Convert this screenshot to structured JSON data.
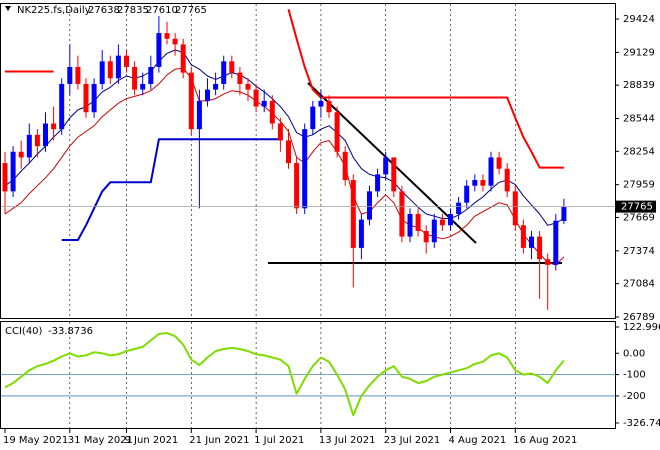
{
  "chart_data": {
    "type": "candlestick",
    "title": "NK225.fs,Daily",
    "categories": [
      "19 May 2021",
      null,
      null,
      null,
      null,
      null,
      null,
      null,
      "31 May 2021",
      null,
      null,
      null,
      null,
      null,
      null,
      "9 Jun 2021",
      null,
      null,
      null,
      null,
      null,
      null,
      null,
      "21 Jun 2021",
      null,
      null,
      null,
      null,
      null,
      null,
      null,
      "1 Jul 2021",
      null,
      null,
      null,
      null,
      null,
      null,
      null,
      "13 Jul 2021",
      null,
      null,
      null,
      null,
      null,
      null,
      null,
      "23 Jul 2021",
      null,
      null,
      null,
      null,
      null,
      null,
      null,
      "4 Aug 2021",
      null,
      null,
      null,
      null,
      null,
      null,
      null,
      "16 Aug 2021",
      null,
      null,
      null,
      null,
      null,
      null
    ],
    "ohlc": [
      [
        28150,
        28250,
        27700,
        27900
      ],
      [
        27900,
        28300,
        27850,
        28250
      ],
      [
        28250,
        28350,
        28100,
        28200
      ],
      [
        28200,
        28500,
        28150,
        28400
      ],
      [
        28400,
        28450,
        28200,
        28300
      ],
      [
        28300,
        28600,
        28250,
        28500
      ],
      [
        28500,
        28650,
        28350,
        28450
      ],
      [
        28450,
        28900,
        28400,
        28850
      ],
      [
        28850,
        29200,
        28750,
        29000
      ],
      [
        29000,
        29100,
        28800,
        28850
      ],
      [
        28850,
        28900,
        28550,
        28600
      ],
      [
        28600,
        28900,
        28550,
        28850
      ],
      [
        28850,
        29150,
        28800,
        29050
      ],
      [
        29050,
        29100,
        28850,
        28900
      ],
      [
        28900,
        29200,
        28850,
        29100
      ],
      [
        29100,
        29150,
        28950,
        29000
      ],
      [
        29000,
        29050,
        28750,
        28800
      ],
      [
        28800,
        28950,
        28750,
        28850
      ],
      [
        28850,
        29100,
        28800,
        29000
      ],
      [
        29000,
        29450,
        28950,
        29300
      ],
      [
        29300,
        29400,
        29200,
        29250
      ],
      [
        29250,
        29300,
        29100,
        29200
      ],
      [
        29200,
        29250,
        28900,
        28950
      ],
      [
        28950,
        29000,
        28400,
        28450
      ],
      [
        28450,
        28800,
        27750,
        28700
      ],
      [
        28700,
        28900,
        28650,
        28800
      ],
      [
        28800,
        28950,
        28750,
        28850
      ],
      [
        28850,
        29100,
        28800,
        29050
      ],
      [
        29050,
        29100,
        28900,
        28950
      ],
      [
        28950,
        29000,
        28750,
        28850
      ],
      [
        28850,
        28900,
        28700,
        28800
      ],
      [
        28800,
        28850,
        28600,
        28650
      ],
      [
        28650,
        28800,
        28600,
        28700
      ],
      [
        28700,
        28750,
        28450,
        28500
      ],
      [
        28500,
        28550,
        28250,
        28350
      ],
      [
        28350,
        28450,
        28100,
        28150
      ],
      [
        28150,
        28200,
        27700,
        27750
      ],
      [
        27750,
        28500,
        27700,
        28450
      ],
      [
        28450,
        28700,
        28400,
        28650
      ],
      [
        28650,
        28800,
        28550,
        28700
      ],
      [
        28700,
        28750,
        28550,
        28600
      ],
      [
        28600,
        28650,
        28200,
        28250
      ],
      [
        28250,
        28300,
        27950,
        28000
      ],
      [
        28000,
        28050,
        27050,
        27400
      ],
      [
        27400,
        27700,
        27300,
        27650
      ],
      [
        27650,
        27950,
        27600,
        27900
      ],
      [
        27900,
        28100,
        27850,
        28050
      ],
      [
        28050,
        28250,
        28000,
        28200
      ],
      [
        28200,
        28200,
        27850,
        27900
      ],
      [
        27900,
        27950,
        27450,
        27500
      ],
      [
        27500,
        27750,
        27450,
        27700
      ],
      [
        27700,
        27750,
        27500,
        27550
      ],
      [
        27550,
        27600,
        27350,
        27450
      ],
      [
        27450,
        27700,
        27400,
        27650
      ],
      [
        27650,
        27700,
        27550,
        27600
      ],
      [
        27600,
        27750,
        27550,
        27700
      ],
      [
        27700,
        27850,
        27650,
        27800
      ],
      [
        27800,
        28000,
        27750,
        27950
      ],
      [
        27950,
        28050,
        27900,
        28000
      ],
      [
        28000,
        28050,
        27900,
        27950
      ],
      [
        27950,
        28250,
        27900,
        28200
      ],
      [
        28200,
        28250,
        28050,
        28100
      ],
      [
        28100,
        28150,
        27850,
        27900
      ],
      [
        27900,
        27950,
        27550,
        27600
      ],
      [
        27600,
        27650,
        27350,
        27400
      ],
      [
        27400,
        27550,
        27300,
        27500
      ],
      [
        27500,
        27550,
        26950,
        27300
      ],
      [
        27300,
        27350,
        26850,
        27250
      ],
      [
        27250,
        27700,
        27200,
        27640
      ],
      [
        27638,
        27835,
        27610,
        27765
      ]
    ],
    "colors": {
      "up": "#0000ff",
      "down": "#ff0000"
    },
    "ylim": [
      26780,
      29557
    ],
    "yticks": [
      29424,
      29129,
      28839,
      28544,
      28254,
      27959,
      27669,
      27374,
      27084,
      26789
    ],
    "series": [
      {
        "color": "#000080",
        "values": [
          27950,
          28000,
          28080,
          28150,
          28230,
          28300,
          28380,
          28450,
          28550,
          28620,
          28650,
          28700,
          28780,
          28820,
          28880,
          28920,
          28900,
          28920,
          28960,
          29050,
          29120,
          29150,
          29130,
          29020,
          28980,
          28920,
          28890,
          28920,
          28950,
          28930,
          28890,
          28830,
          28780,
          28720,
          28650,
          28560,
          28420,
          28380,
          28400,
          28450,
          28480,
          28420,
          28350,
          28200,
          28100,
          28050,
          28030,
          28020,
          27980,
          27900,
          27830,
          27760,
          27700,
          27680,
          27660,
          27660,
          27690,
          27740,
          27800,
          27850,
          27920,
          27980,
          28000,
          27960,
          27860,
          27780,
          27700,
          27600,
          27620,
          27660
        ]
      },
      {
        "color": "#cc0000",
        "values": [
          27700,
          27750,
          27800,
          27880,
          27950,
          28020,
          28100,
          28200,
          28300,
          28380,
          28430,
          28480,
          28560,
          28620,
          28680,
          28720,
          28740,
          28760,
          28790,
          28850,
          28930,
          28980,
          28990,
          28900,
          28700,
          28700,
          28720,
          28760,
          28790,
          28780,
          28750,
          28700,
          28650,
          28590,
          28520,
          28430,
          28200,
          28150,
          28250,
          28330,
          28350,
          28250,
          28120,
          27850,
          27700,
          27720,
          27800,
          27870,
          27800,
          27650,
          27600,
          27580,
          27520,
          27500,
          27480,
          27500,
          27540,
          27600,
          27680,
          27720,
          27760,
          27800,
          27780,
          27650,
          27520,
          27430,
          27350,
          27270,
          27250,
          27320
        ]
      },
      {
        "color": "#ff0000",
        "values": [
          28960,
          28960,
          28960,
          28960,
          28960,
          28960,
          28960,
          null,
          null,
          null,
          null,
          null,
          null,
          null,
          null,
          null,
          null,
          null,
          null,
          null,
          null,
          null,
          null,
          null,
          null,
          null,
          null,
          null,
          null,
          null,
          null,
          null,
          null,
          null,
          null,
          29510,
          29250,
          29000,
          28800,
          28730,
          28730,
          28730,
          28730,
          28730,
          28730,
          28730,
          28730,
          28730,
          28730,
          28730,
          28730,
          28730,
          28730,
          28730,
          28730,
          28730,
          28730,
          28730,
          28730,
          28730,
          28730,
          28730,
          28730,
          28550,
          28380,
          28250,
          28110,
          28110,
          28110,
          28110
        ]
      },
      {
        "color": "#0000cd",
        "values": [
          null,
          null,
          null,
          null,
          null,
          null,
          null,
          27470,
          27470,
          27470,
          27600,
          27750,
          27900,
          27980,
          27980,
          27980,
          27980,
          27980,
          27980,
          28360,
          28360,
          28360,
          28360,
          28360,
          28360,
          28360,
          28360,
          28360,
          28360,
          28360,
          28360,
          28360,
          28360,
          28360,
          28360,
          null,
          null,
          null,
          null,
          null,
          null,
          null,
          null,
          null,
          null,
          null,
          null,
          null,
          null,
          null,
          null,
          null,
          null,
          null,
          null,
          null,
          null,
          null,
          null,
          null,
          null,
          null,
          null,
          null,
          null,
          null,
          null,
          null,
          null,
          null
        ]
      }
    ],
    "cci": {
      "title": "CCI(40)",
      "color": "#7fdc00",
      "values": [
        -160,
        -140,
        -110,
        -80,
        -60,
        -50,
        -35,
        -15,
        0,
        -15,
        -10,
        5,
        0,
        -10,
        -5,
        10,
        20,
        30,
        60,
        90,
        95,
        80,
        40,
        -30,
        -55,
        -20,
        10,
        20,
        25,
        20,
        10,
        -5,
        -10,
        -20,
        -30,
        -60,
        -190,
        -120,
        -60,
        -20,
        -40,
        -100,
        -170,
        -290,
        -200,
        -150,
        -110,
        -80,
        -60,
        -110,
        -120,
        -140,
        -130,
        -110,
        -100,
        -90,
        -80,
        -70,
        -50,
        -40,
        -10,
        0,
        -20,
        -80,
        -100,
        -95,
        -110,
        -140,
        -80,
        -33.8736
      ],
      "ylim": [
        -326.744,
        122.9967
      ],
      "yticks": [
        {
          "value": 0,
          "label": "0.00"
        },
        -100,
        -200
      ]
    }
  }
}
